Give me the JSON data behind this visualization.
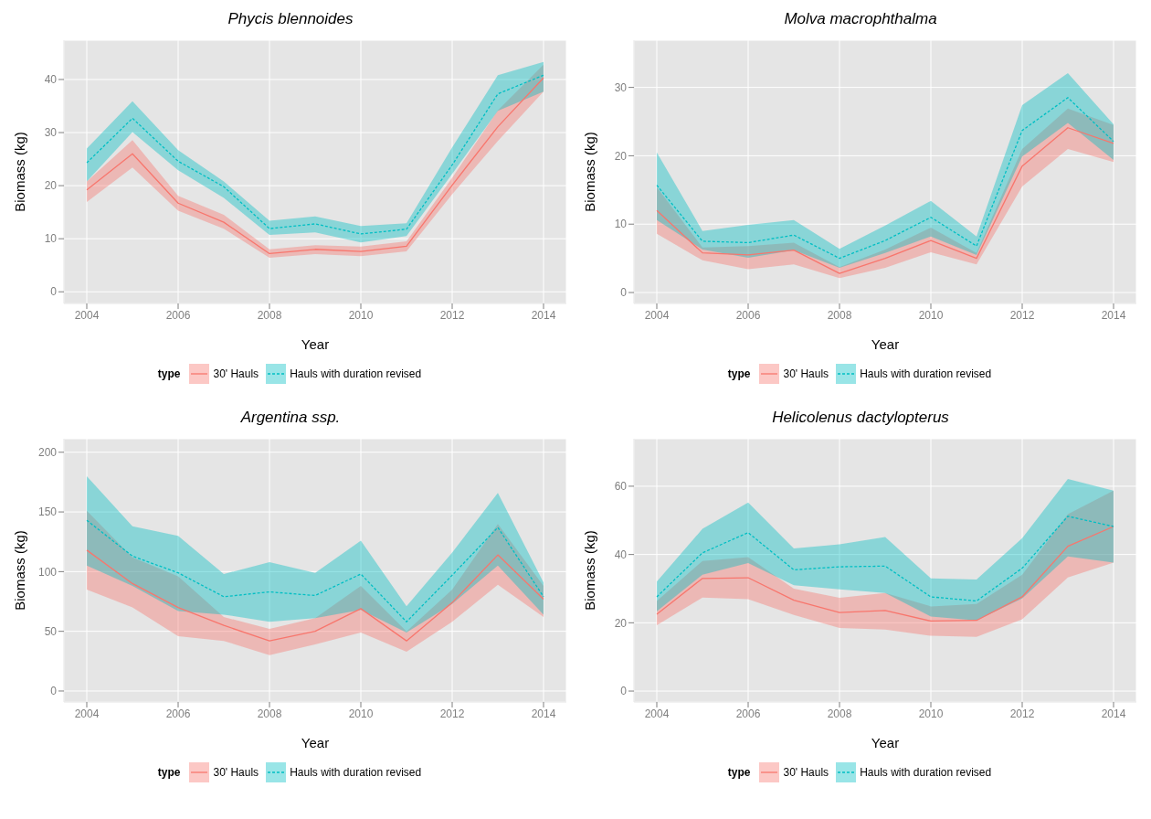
{
  "chart_data": [
    {
      "type": "line",
      "title": "Phycis blennoides",
      "xlabel": "Year",
      "ylabel": "Biomass (kg)",
      "legend_title": "type",
      "legend": "bottom",
      "grid": true,
      "x": [
        2004,
        2005,
        2006,
        2007,
        2008,
        2009,
        2010,
        2011,
        2012,
        2013,
        2014
      ],
      "xlim": [
        2003.5,
        2014.5
      ],
      "xticks": [
        2004,
        2006,
        2008,
        2010,
        2012,
        2014
      ],
      "ylim": [
        -2.2,
        47.4
      ],
      "yticks": [
        0,
        10,
        20,
        30,
        40
      ],
      "series": [
        {
          "name": "30' Hauls",
          "color": "#f8766d",
          "line_style": "solid",
          "values": [
            19.2,
            26.0,
            16.7,
            13.1,
            7.2,
            8.0,
            7.6,
            8.6,
            20.1,
            31.1,
            40.3
          ],
          "lower": [
            16.9,
            23.4,
            15.3,
            11.9,
            6.4,
            7.1,
            6.7,
            7.6,
            18.4,
            28.4,
            37.7
          ],
          "upper": [
            20.8,
            28.6,
            18.1,
            14.5,
            8.0,
            8.8,
            8.5,
            9.5,
            21.5,
            34.2,
            42.8
          ]
        },
        {
          "name": "Hauls with duration revised",
          "color": "#00bfc4",
          "line_style": "dashed",
          "values": [
            24.3,
            32.7,
            24.6,
            19.8,
            11.9,
            12.8,
            10.9,
            11.8,
            23.9,
            37.3,
            40.8
          ],
          "lower": [
            20.8,
            30.1,
            22.9,
            17.7,
            10.7,
            11.2,
            9.3,
            10.5,
            22.2,
            34.1,
            37.7
          ],
          "upper": [
            27.0,
            35.9,
            26.7,
            20.8,
            13.4,
            14.2,
            12.4,
            12.9,
            27.2,
            40.8,
            43.3
          ]
        }
      ]
    },
    {
      "type": "line",
      "title": "Molva macrophthalma",
      "xlabel": "Year",
      "ylabel": "Biomass (kg)",
      "legend_title": "type",
      "legend": "bottom",
      "grid": true,
      "x": [
        2004,
        2005,
        2006,
        2007,
        2008,
        2009,
        2010,
        2011,
        2012,
        2013,
        2014
      ],
      "xlim": [
        2003.5,
        2014.5
      ],
      "xticks": [
        2004,
        2006,
        2008,
        2010,
        2012,
        2014
      ],
      "ylim": [
        -1.6,
        36.9
      ],
      "yticks": [
        0,
        10,
        20,
        30
      ],
      "series": [
        {
          "name": "30' Hauls",
          "color": "#f8766d",
          "line_style": "solid",
          "values": [
            12.0,
            5.8,
            5.5,
            6.2,
            2.8,
            5.0,
            7.6,
            5.0,
            18.5,
            24.1,
            21.8
          ],
          "lower": [
            8.6,
            4.7,
            3.4,
            4.1,
            2.1,
            3.6,
            5.9,
            4.1,
            15.5,
            21.0,
            19.1
          ],
          "upper": [
            15.4,
            6.6,
            6.8,
            7.3,
            3.7,
            6.3,
            9.5,
            5.8,
            21.0,
            26.9,
            24.5
          ]
        },
        {
          "name": "Hauls with duration revised",
          "color": "#00bfc4",
          "line_style": "dashed",
          "values": [
            15.7,
            7.5,
            7.3,
            8.4,
            5.0,
            7.6,
            11.0,
            6.8,
            23.7,
            28.5,
            22.1
          ],
          "lower": [
            10.6,
            6.3,
            5.1,
            6.2,
            3.6,
            5.8,
            8.2,
            5.5,
            19.9,
            24.8,
            19.4
          ],
          "upper": [
            20.5,
            9.0,
            9.9,
            10.6,
            6.4,
            9.8,
            13.4,
            8.2,
            27.4,
            32.1,
            24.6
          ]
        }
      ]
    },
    {
      "type": "line",
      "title": "Argentina ssp.",
      "xlabel": "Year",
      "ylabel": "Biomass (kg)",
      "legend_title": "type",
      "legend": "bottom",
      "grid": true,
      "x": [
        2004,
        2005,
        2006,
        2007,
        2008,
        2009,
        2010,
        2011,
        2012,
        2013,
        2014
      ],
      "xlim": [
        2003.5,
        2014.5
      ],
      "xticks": [
        2004,
        2006,
        2008,
        2010,
        2012,
        2014
      ],
      "ylim": [
        -9.2,
        211.3
      ],
      "yticks": [
        0,
        50,
        100,
        150,
        200
      ],
      "series": [
        {
          "name": "30' Hauls",
          "color": "#f8766d",
          "line_style": "solid",
          "values": [
            118,
            90,
            70,
            55,
            42,
            50,
            69,
            42,
            74,
            114,
            77
          ],
          "lower": [
            85,
            70,
            46,
            42,
            30,
            39,
            49,
            33,
            58,
            89,
            62
          ],
          "upper": [
            151,
            112,
            96,
            62,
            52,
            61,
            88,
            50,
            85,
            140,
            88
          ]
        },
        {
          "name": "Hauls with duration revised",
          "color": "#00bfc4",
          "line_style": "dashed",
          "values": [
            143,
            113,
            99,
            79,
            83,
            80,
            98,
            58,
            97,
            137,
            79
          ],
          "lower": [
            105,
            88,
            67,
            64,
            58,
            61,
            68,
            49,
            73,
            105,
            64
          ],
          "upper": [
            180,
            138,
            130,
            98,
            108,
            99,
            126,
            71,
            116,
            166,
            91
          ]
        }
      ]
    },
    {
      "type": "line",
      "title": "Helicolenus dactylopterus",
      "xlabel": "Year",
      "ylabel": "Biomass (kg)",
      "legend_title": "type",
      "legend": "bottom",
      "grid": true,
      "x": [
        2004,
        2005,
        2006,
        2007,
        2008,
        2009,
        2010,
        2011,
        2012,
        2013,
        2014
      ],
      "xlim": [
        2003.5,
        2014.5
      ],
      "xticks": [
        2004,
        2006,
        2008,
        2010,
        2012,
        2014
      ],
      "ylim": [
        -3.2,
        73.9
      ],
      "yticks": [
        0,
        20,
        40,
        60
      ],
      "series": [
        {
          "name": "30' Hauls",
          "color": "#f8766d",
          "line_style": "solid",
          "values": [
            22.5,
            33.0,
            33.2,
            26.6,
            23.0,
            23.6,
            20.5,
            20.7,
            27.6,
            42.4,
            48.2
          ],
          "lower": [
            19.3,
            27.4,
            26.9,
            22.3,
            18.5,
            18.0,
            16.2,
            15.9,
            21.0,
            33.3,
            37.6
          ],
          "upper": [
            26.4,
            38.1,
            39.2,
            30.0,
            27.3,
            28.7,
            24.8,
            25.5,
            34.1,
            51.8,
            58.7
          ]
        },
        {
          "name": "Hauls with duration revised",
          "color": "#00bfc4",
          "line_style": "dashed",
          "values": [
            27.6,
            40.5,
            46.4,
            35.5,
            36.4,
            36.6,
            27.6,
            26.4,
            36.0,
            51.2,
            48.2
          ],
          "lower": [
            23.4,
            34.1,
            37.5,
            31.0,
            29.8,
            28.7,
            21.8,
            20.7,
            27.1,
            39.4,
            37.6
          ],
          "upper": [
            32.1,
            47.5,
            55.2,
            41.8,
            43.0,
            45.1,
            33.0,
            32.7,
            44.8,
            62.1,
            58.7
          ]
        }
      ]
    }
  ]
}
